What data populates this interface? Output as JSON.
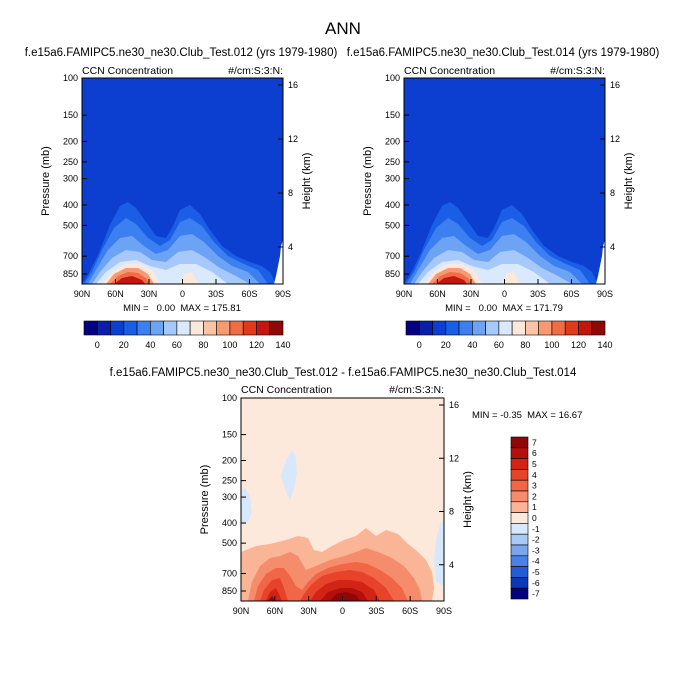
{
  "page": {
    "title": "ANN"
  },
  "panels": [
    {
      "title": "f.e15a6.FAMIPC5.ne30_ne30.Club_Test.012 (yrs 1979-1980)",
      "left_label": "CCN Concentration",
      "right_label": "#/cm:S:3:N:",
      "stats": "MIN =   0.00  MAX = 175.81"
    },
    {
      "title": "f.e15a6.FAMIPC5.ne30_ne30.Club_Test.014 (yrs 1979-1980)",
      "left_label": "CCN Concentration",
      "right_label": "#/cm:S:3:N:",
      "stats": "MIN =   0.00  MAX = 171.79"
    },
    {
      "title": "f.e15a6.FAMIPC5.ne30_ne30.Club_Test.012 - f.e15a6.FAMIPC5.ne30_ne30.Club_Test.014",
      "left_label": "CCN Concentration",
      "right_label": "#/cm:S:3:N:",
      "stats": "MIN = -0.35  MAX = 16.67"
    }
  ],
  "chart_data": [
    {
      "type": "heatmap",
      "subtype": "filled-contour",
      "xlabel": "",
      "ylabel": "Pressure (mb)",
      "y2label": "Height (km)",
      "x_ticks": [
        "90N",
        "60N",
        "30N",
        "0",
        "30S",
        "60S",
        "90S"
      ],
      "y_ticks": [
        100,
        150,
        200,
        250,
        300,
        400,
        500,
        700,
        850
      ],
      "y_scale": "log",
      "y2_ticks": [
        16,
        12,
        8,
        4
      ],
      "colorbar_levels": [
        0,
        10,
        20,
        30,
        40,
        50,
        60,
        70,
        80,
        90,
        100,
        110,
        120,
        130,
        140
      ],
      "colorbar_labels": [
        0,
        20,
        40,
        60,
        80,
        100,
        120,
        140
      ],
      "colorbar_colors": [
        "#05007f",
        "#0a1ea8",
        "#0c3fcf",
        "#1a5ee6",
        "#3b7ff0",
        "#6da3f5",
        "#a6c8fa",
        "#dbe9fd",
        "#fde8dc",
        "#fbc3a6",
        "#f79a72",
        "#ef6c44",
        "#df3a1e",
        "#c2170f",
        "#8f0707"
      ],
      "min": 0.0,
      "max": 175.81
    },
    {
      "type": "heatmap",
      "subtype": "filled-contour",
      "xlabel": "",
      "ylabel": "Pressure (mb)",
      "y2label": "Height (km)",
      "x_ticks": [
        "90N",
        "60N",
        "30N",
        "0",
        "30S",
        "60S",
        "90S"
      ],
      "y_ticks": [
        100,
        150,
        200,
        250,
        300,
        400,
        500,
        700,
        850
      ],
      "y_scale": "log",
      "y2_ticks": [
        16,
        12,
        8,
        4
      ],
      "colorbar_levels": [
        0,
        10,
        20,
        30,
        40,
        50,
        60,
        70,
        80,
        90,
        100,
        110,
        120,
        130,
        140
      ],
      "colorbar_labels": [
        0,
        20,
        40,
        60,
        80,
        100,
        120,
        140
      ],
      "colorbar_colors": [
        "#05007f",
        "#0a1ea8",
        "#0c3fcf",
        "#1a5ee6",
        "#3b7ff0",
        "#6da3f5",
        "#a6c8fa",
        "#dbe9fd",
        "#fde8dc",
        "#fbc3a6",
        "#f79a72",
        "#ef6c44",
        "#df3a1e",
        "#c2170f",
        "#8f0707"
      ],
      "min": 0.0,
      "max": 171.79
    },
    {
      "type": "heatmap",
      "subtype": "filled-contour",
      "xlabel": "",
      "ylabel": "Pressure (mb)",
      "y2label": "Height (km)",
      "x_ticks": [
        "90N",
        "60N",
        "30N",
        "0",
        "30S",
        "60S",
        "90S"
      ],
      "y_ticks": [
        100,
        150,
        200,
        250,
        300,
        400,
        500,
        700,
        850
      ],
      "y_scale": "log",
      "y2_ticks": [
        16,
        12,
        8,
        4
      ],
      "colorbar_labels": [
        7,
        6,
        5,
        4,
        3,
        2,
        1,
        0,
        -1,
        -2,
        -3,
        -4,
        -5,
        -6,
        -7
      ],
      "colorbar_colors": [
        "#8f0707",
        "#b3100c",
        "#d12414",
        "#e6432a",
        "#f06646",
        "#f58d6c",
        "#f9b596",
        "#fde9dc",
        "#d8e8fc",
        "#a9c9f7",
        "#7aa6f0",
        "#4b80e6",
        "#255cd6",
        "#0d38b5",
        "#05007f"
      ],
      "min": -0.35,
      "max": 16.67
    }
  ]
}
